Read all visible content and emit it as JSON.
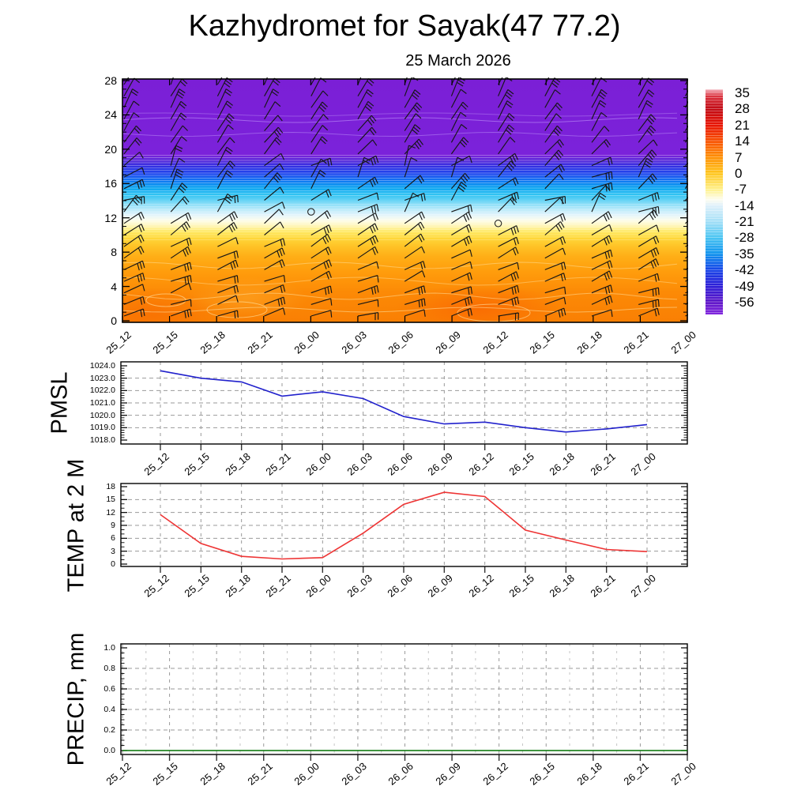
{
  "header": {
    "title": "Kazhydromet for Sayak(47 77.2)",
    "subtitle": "25 March 2026"
  },
  "x_axis": {
    "time_labels": [
      "25_12",
      "25_15",
      "25_18",
      "25_21",
      "26_00",
      "26_03",
      "26_06",
      "26_09",
      "26_12",
      "26_15",
      "26_18",
      "26_21",
      "27_00"
    ]
  },
  "colors": {
    "pmsl_line": "#2121cc",
    "temp_line": "#ee3434",
    "precip_line": "#007200",
    "barb": "#161616",
    "grid": "#9a9a9a",
    "grid_light": "#c6c6c6",
    "axis": "#000000"
  },
  "chart_data": [
    {
      "type": "heatmap",
      "title": "wind barbs and temperature cross-section",
      "y_ticks": [
        0,
        4,
        8,
        12,
        16,
        20,
        24,
        28
      ],
      "ylim": [
        0,
        28
      ],
      "colorbar": {
        "tick_labels": [
          "35",
          "28",
          "21",
          "14",
          "7",
          "0",
          "-7",
          "-14",
          "-21",
          "-28",
          "-35",
          "-42",
          "-49",
          "-56"
        ],
        "stops": [
          {
            "pos": 0.0,
            "color": "#f4b2bd"
          },
          {
            "pos": 0.03,
            "color": "#db3440"
          },
          {
            "pos": 0.087,
            "color": "#c00a14"
          },
          {
            "pos": 0.158,
            "color": "#e81404"
          },
          {
            "pos": 0.23,
            "color": "#f85202"
          },
          {
            "pos": 0.3,
            "color": "#fe8f05"
          },
          {
            "pos": 0.373,
            "color": "#ffc61e"
          },
          {
            "pos": 0.445,
            "color": "#fff18c"
          },
          {
            "pos": 0.49,
            "color": "#fdfdf0"
          },
          {
            "pos": 0.516,
            "color": "#dff0fa"
          },
          {
            "pos": 0.587,
            "color": "#a5e0f7"
          },
          {
            "pos": 0.66,
            "color": "#49c4f2"
          },
          {
            "pos": 0.73,
            "color": "#0f93ee"
          },
          {
            "pos": 0.8,
            "color": "#1747e8"
          },
          {
            "pos": 0.87,
            "color": "#2b1fd8"
          },
          {
            "pos": 0.945,
            "color": "#5f17c8"
          },
          {
            "pos": 1.0,
            "color": "#8226de"
          }
        ]
      },
      "field_stops": [
        {
          "pos": 0.0,
          "color": "#7b1fd6"
        },
        {
          "pos": 0.312,
          "color": "#7b22da"
        },
        {
          "pos": 0.334,
          "color": "#5a2ada"
        },
        {
          "pos": 0.36,
          "color": "#3030e2"
        },
        {
          "pos": 0.39,
          "color": "#1f49ee"
        },
        {
          "pos": 0.416,
          "color": "#1173f2"
        },
        {
          "pos": 0.445,
          "color": "#06a0f0"
        },
        {
          "pos": 0.474,
          "color": "#2ec2f2"
        },
        {
          "pos": 0.506,
          "color": "#79d9f6"
        },
        {
          "pos": 0.536,
          "color": "#b9eafa"
        },
        {
          "pos": 0.558,
          "color": "#e2f4fc"
        },
        {
          "pos": 0.581,
          "color": "#fdfdea"
        },
        {
          "pos": 0.604,
          "color": "#fff6b6"
        },
        {
          "pos": 0.627,
          "color": "#ffe964"
        },
        {
          "pos": 0.653,
          "color": "#ffd83a"
        },
        {
          "pos": 0.688,
          "color": "#ffc226"
        },
        {
          "pos": 0.73,
          "color": "#ffae16"
        },
        {
          "pos": 0.795,
          "color": "#ff9c0c"
        },
        {
          "pos": 0.877,
          "color": "#fc8a06"
        },
        {
          "pos": 1.0,
          "color": "#f97f03"
        }
      ],
      "barb_grid": {
        "columns": 13,
        "rows": 21
      },
      "calm_markers": [
        {
          "time_index": 4,
          "row": 11
        },
        {
          "time_index": 8,
          "row": 12
        }
      ]
    },
    {
      "type": "line",
      "name": "PMSL",
      "ylim": [
        1018,
        1024
      ],
      "y_tick_labels": [
        "1024.0",
        "1023.0",
        "1022.0",
        "1021.0",
        "1020.0",
        "1019.0",
        "1018.0"
      ],
      "y_minor_step": 0.2,
      "x": [
        "25_12",
        "25_15",
        "25_18",
        "25_21",
        "26_00",
        "26_03",
        "26_06",
        "26_09",
        "26_12",
        "26_15",
        "26_18",
        "26_21",
        "27_00"
      ],
      "values": [
        1023.6,
        1023.0,
        1022.7,
        1021.55,
        1021.9,
        1021.35,
        1019.9,
        1019.3,
        1019.45,
        1019.0,
        1018.65,
        1018.9,
        1019.25
      ]
    },
    {
      "type": "line",
      "name": "TEMP at 2 M",
      "ylim": [
        0,
        18
      ],
      "y_tick_labels": [
        "18",
        "15",
        "12",
        "9",
        "6",
        "3",
        "0"
      ],
      "y_minor_step": 1,
      "x": [
        "25_12",
        "25_15",
        "25_18",
        "25_21",
        "26_00",
        "26_03",
        "26_06",
        "26_09",
        "26_12",
        "26_15",
        "26_18",
        "26_21",
        "27_00"
      ],
      "values": [
        11.5,
        4.8,
        1.8,
        1.2,
        1.5,
        7.2,
        13.9,
        16.7,
        15.7,
        7.9,
        5.6,
        3.4,
        2.9
      ]
    },
    {
      "type": "line",
      "name": "PRECIP, mm",
      "ylim": [
        0,
        1
      ],
      "y_tick_labels": [
        "1.0",
        "0.8",
        "0.6",
        "0.4",
        "0.2",
        "0.0"
      ],
      "y_minor_step": 0.05,
      "x": [
        "25_12",
        "25_15",
        "25_18",
        "25_21",
        "26_00",
        "26_03",
        "26_06",
        "26_09",
        "26_12",
        "26_15",
        "26_18",
        "26_21",
        "27_00"
      ],
      "values": [
        0,
        0,
        0,
        0,
        0,
        0,
        0,
        0,
        0,
        0,
        0,
        0,
        0
      ]
    }
  ]
}
